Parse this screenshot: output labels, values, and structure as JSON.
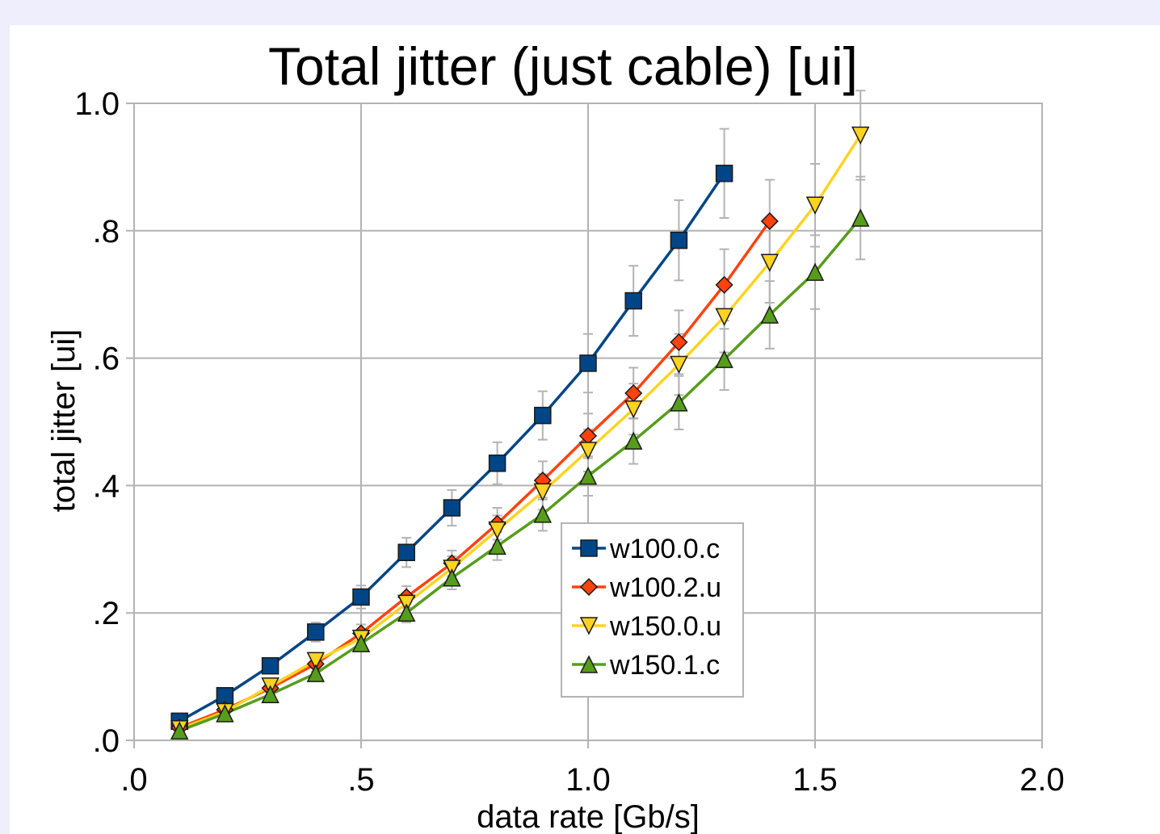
{
  "chart_data": {
    "type": "line",
    "title": "Total jitter (just cable) [ui]",
    "xlabel": "data rate [Gb/s]",
    "ylabel": "total jitter [ui]",
    "xlim": [
      0,
      2.0
    ],
    "ylim": [
      0,
      1.0
    ],
    "x_ticks": [
      0,
      0.5,
      1.0,
      1.5,
      2.0
    ],
    "x_tick_labels": [
      ".0",
      ".5",
      "1.0",
      "1.5",
      "2.0"
    ],
    "y_ticks": [
      0,
      0.2,
      0.4,
      0.6,
      0.8,
      1.0
    ],
    "y_tick_labels": [
      ".0",
      ".2",
      ".4",
      ".6",
      ".8",
      "1.0"
    ],
    "grid": true,
    "legend_position": "center-right",
    "series": [
      {
        "name": "w100.0.c",
        "color": "#004586",
        "marker": "square",
        "x": [
          0.1,
          0.2,
          0.3,
          0.4,
          0.5,
          0.6,
          0.7,
          0.8,
          0.9,
          1.0,
          1.1,
          1.2,
          1.3
        ],
        "y": [
          0.03,
          0.07,
          0.117,
          0.17,
          0.225,
          0.295,
          0.365,
          0.435,
          0.51,
          0.592,
          0.69,
          0.785,
          0.89
        ],
        "err": [
          0.008,
          0.01,
          0.012,
          0.015,
          0.018,
          0.023,
          0.028,
          0.033,
          0.038,
          0.046,
          0.055,
          0.063,
          0.07
        ]
      },
      {
        "name": "w100.2.u",
        "color": "#ff420e",
        "marker": "diamond",
        "x": [
          0.1,
          0.2,
          0.3,
          0.4,
          0.5,
          0.6,
          0.7,
          0.8,
          0.9,
          1.0,
          1.1,
          1.2,
          1.3,
          1.4
        ],
        "y": [
          0.02,
          0.048,
          0.082,
          0.12,
          0.168,
          0.225,
          0.278,
          0.34,
          0.408,
          0.478,
          0.545,
          0.625,
          0.715,
          0.815
        ],
        "err": [
          0.006,
          0.008,
          0.01,
          0.012,
          0.014,
          0.017,
          0.02,
          0.025,
          0.03,
          0.035,
          0.04,
          0.05,
          0.056,
          0.065
        ]
      },
      {
        "name": "w150.0.u",
        "color": "#ffd320",
        "marker": "triangle-down",
        "x": [
          0.1,
          0.2,
          0.3,
          0.4,
          0.5,
          0.6,
          0.7,
          0.8,
          0.9,
          1.0,
          1.1,
          1.2,
          1.3,
          1.4,
          1.5,
          1.6
        ],
        "y": [
          0.018,
          0.045,
          0.085,
          0.125,
          0.16,
          0.215,
          0.27,
          0.33,
          0.39,
          0.455,
          0.52,
          0.59,
          0.665,
          0.75,
          0.84,
          0.95
        ],
        "err": [
          0.005,
          0.007,
          0.009,
          0.011,
          0.013,
          0.016,
          0.019,
          0.023,
          0.028,
          0.033,
          0.04,
          0.048,
          0.056,
          0.063,
          0.065,
          0.07
        ]
      },
      {
        "name": "w150.1.c",
        "color": "#579d1c",
        "marker": "triangle-up",
        "x": [
          0.1,
          0.2,
          0.3,
          0.4,
          0.5,
          0.6,
          0.7,
          0.8,
          0.9,
          1.0,
          1.1,
          1.2,
          1.3,
          1.4,
          1.5,
          1.6
        ],
        "y": [
          0.015,
          0.042,
          0.072,
          0.105,
          0.152,
          0.2,
          0.255,
          0.305,
          0.355,
          0.415,
          0.47,
          0.53,
          0.598,
          0.668,
          0.735,
          0.82
        ],
        "err": [
          0.005,
          0.007,
          0.008,
          0.01,
          0.012,
          0.015,
          0.018,
          0.022,
          0.026,
          0.031,
          0.036,
          0.042,
          0.048,
          0.053,
          0.058,
          0.065
        ]
      }
    ]
  }
}
